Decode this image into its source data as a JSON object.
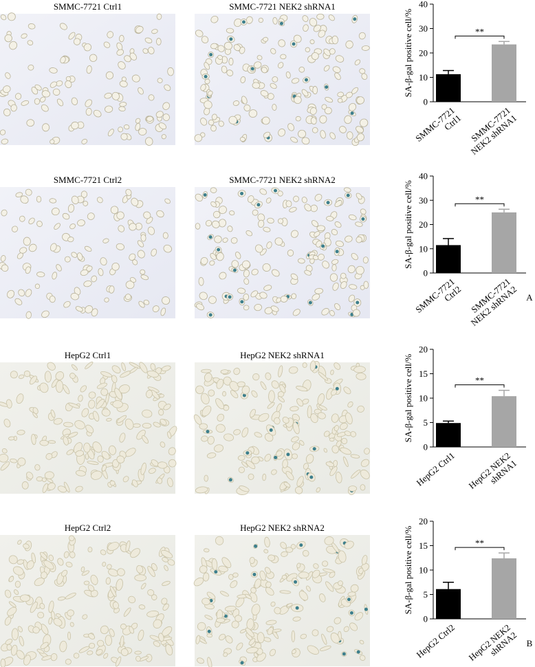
{
  "micrographs": [
    {
      "caption": "SMMC-7721 Ctrl1"
    },
    {
      "caption": "SMMC-7721 NEK2 shRNA1"
    },
    {
      "caption": "SMMC-7721 Ctrl2"
    },
    {
      "caption": "SMMC-7721 NEK2 shRNA2"
    },
    {
      "caption": "HepG2 Ctrl1"
    },
    {
      "caption": "HepG2 NEK2 shRNA1"
    },
    {
      "caption": "HepG2 Ctrl2"
    },
    {
      "caption": "HepG2 NEK2 shRNA2"
    }
  ],
  "panel_labels": [
    "A",
    "B"
  ],
  "chart_data": [
    {
      "type": "bar",
      "ylabel": "SA-β-gal positive cell/%",
      "categories": [
        "SMMC-7721\nCtrl1",
        "SMMC-7721\nNEK2 shRNA1"
      ],
      "values": [
        11.3,
        23.5
      ],
      "errors": [
        1.5,
        1.2
      ],
      "colors": [
        "#000000",
        "#a6a6a6"
      ],
      "ylim": [
        0,
        40
      ],
      "yticks": [
        0,
        10,
        20,
        30,
        40
      ],
      "annotation": "**"
    },
    {
      "type": "bar",
      "ylabel": "SA-β-gal positive cell/%",
      "categories": [
        "SMMC-7721\nCtrl2",
        "SMMC-7721\nNEK2 shRNA2"
      ],
      "values": [
        11.5,
        25
      ],
      "errors": [
        2.7,
        1.3
      ],
      "colors": [
        "#000000",
        "#a6a6a6"
      ],
      "ylim": [
        0,
        40
      ],
      "yticks": [
        0,
        10,
        20,
        30,
        40
      ],
      "annotation": "**"
    },
    {
      "type": "bar",
      "ylabel": "SA-β-gal positive cell/%",
      "categories": [
        "HepG2 Ctrl1",
        "HepG2 NEK2\nshRNA1"
      ],
      "values": [
        4.9,
        10.4
      ],
      "errors": [
        0.4,
        1.2
      ],
      "colors": [
        "#000000",
        "#a6a6a6"
      ],
      "ylim": [
        0,
        20
      ],
      "yticks": [
        0,
        5,
        10,
        15,
        20
      ],
      "annotation": "**"
    },
    {
      "type": "bar",
      "ylabel": "SA-β-gal positive cell/%",
      "categories": [
        "HepG2 Ctrl2",
        "HepG2 NEK2\nshRNA2"
      ],
      "values": [
        6.1,
        12.4
      ],
      "errors": [
        1.4,
        1.1
      ],
      "colors": [
        "#000000",
        "#a6a6a6"
      ],
      "ylim": [
        0,
        20
      ],
      "yticks": [
        0,
        5,
        10,
        15,
        20
      ],
      "annotation": "**"
    }
  ]
}
